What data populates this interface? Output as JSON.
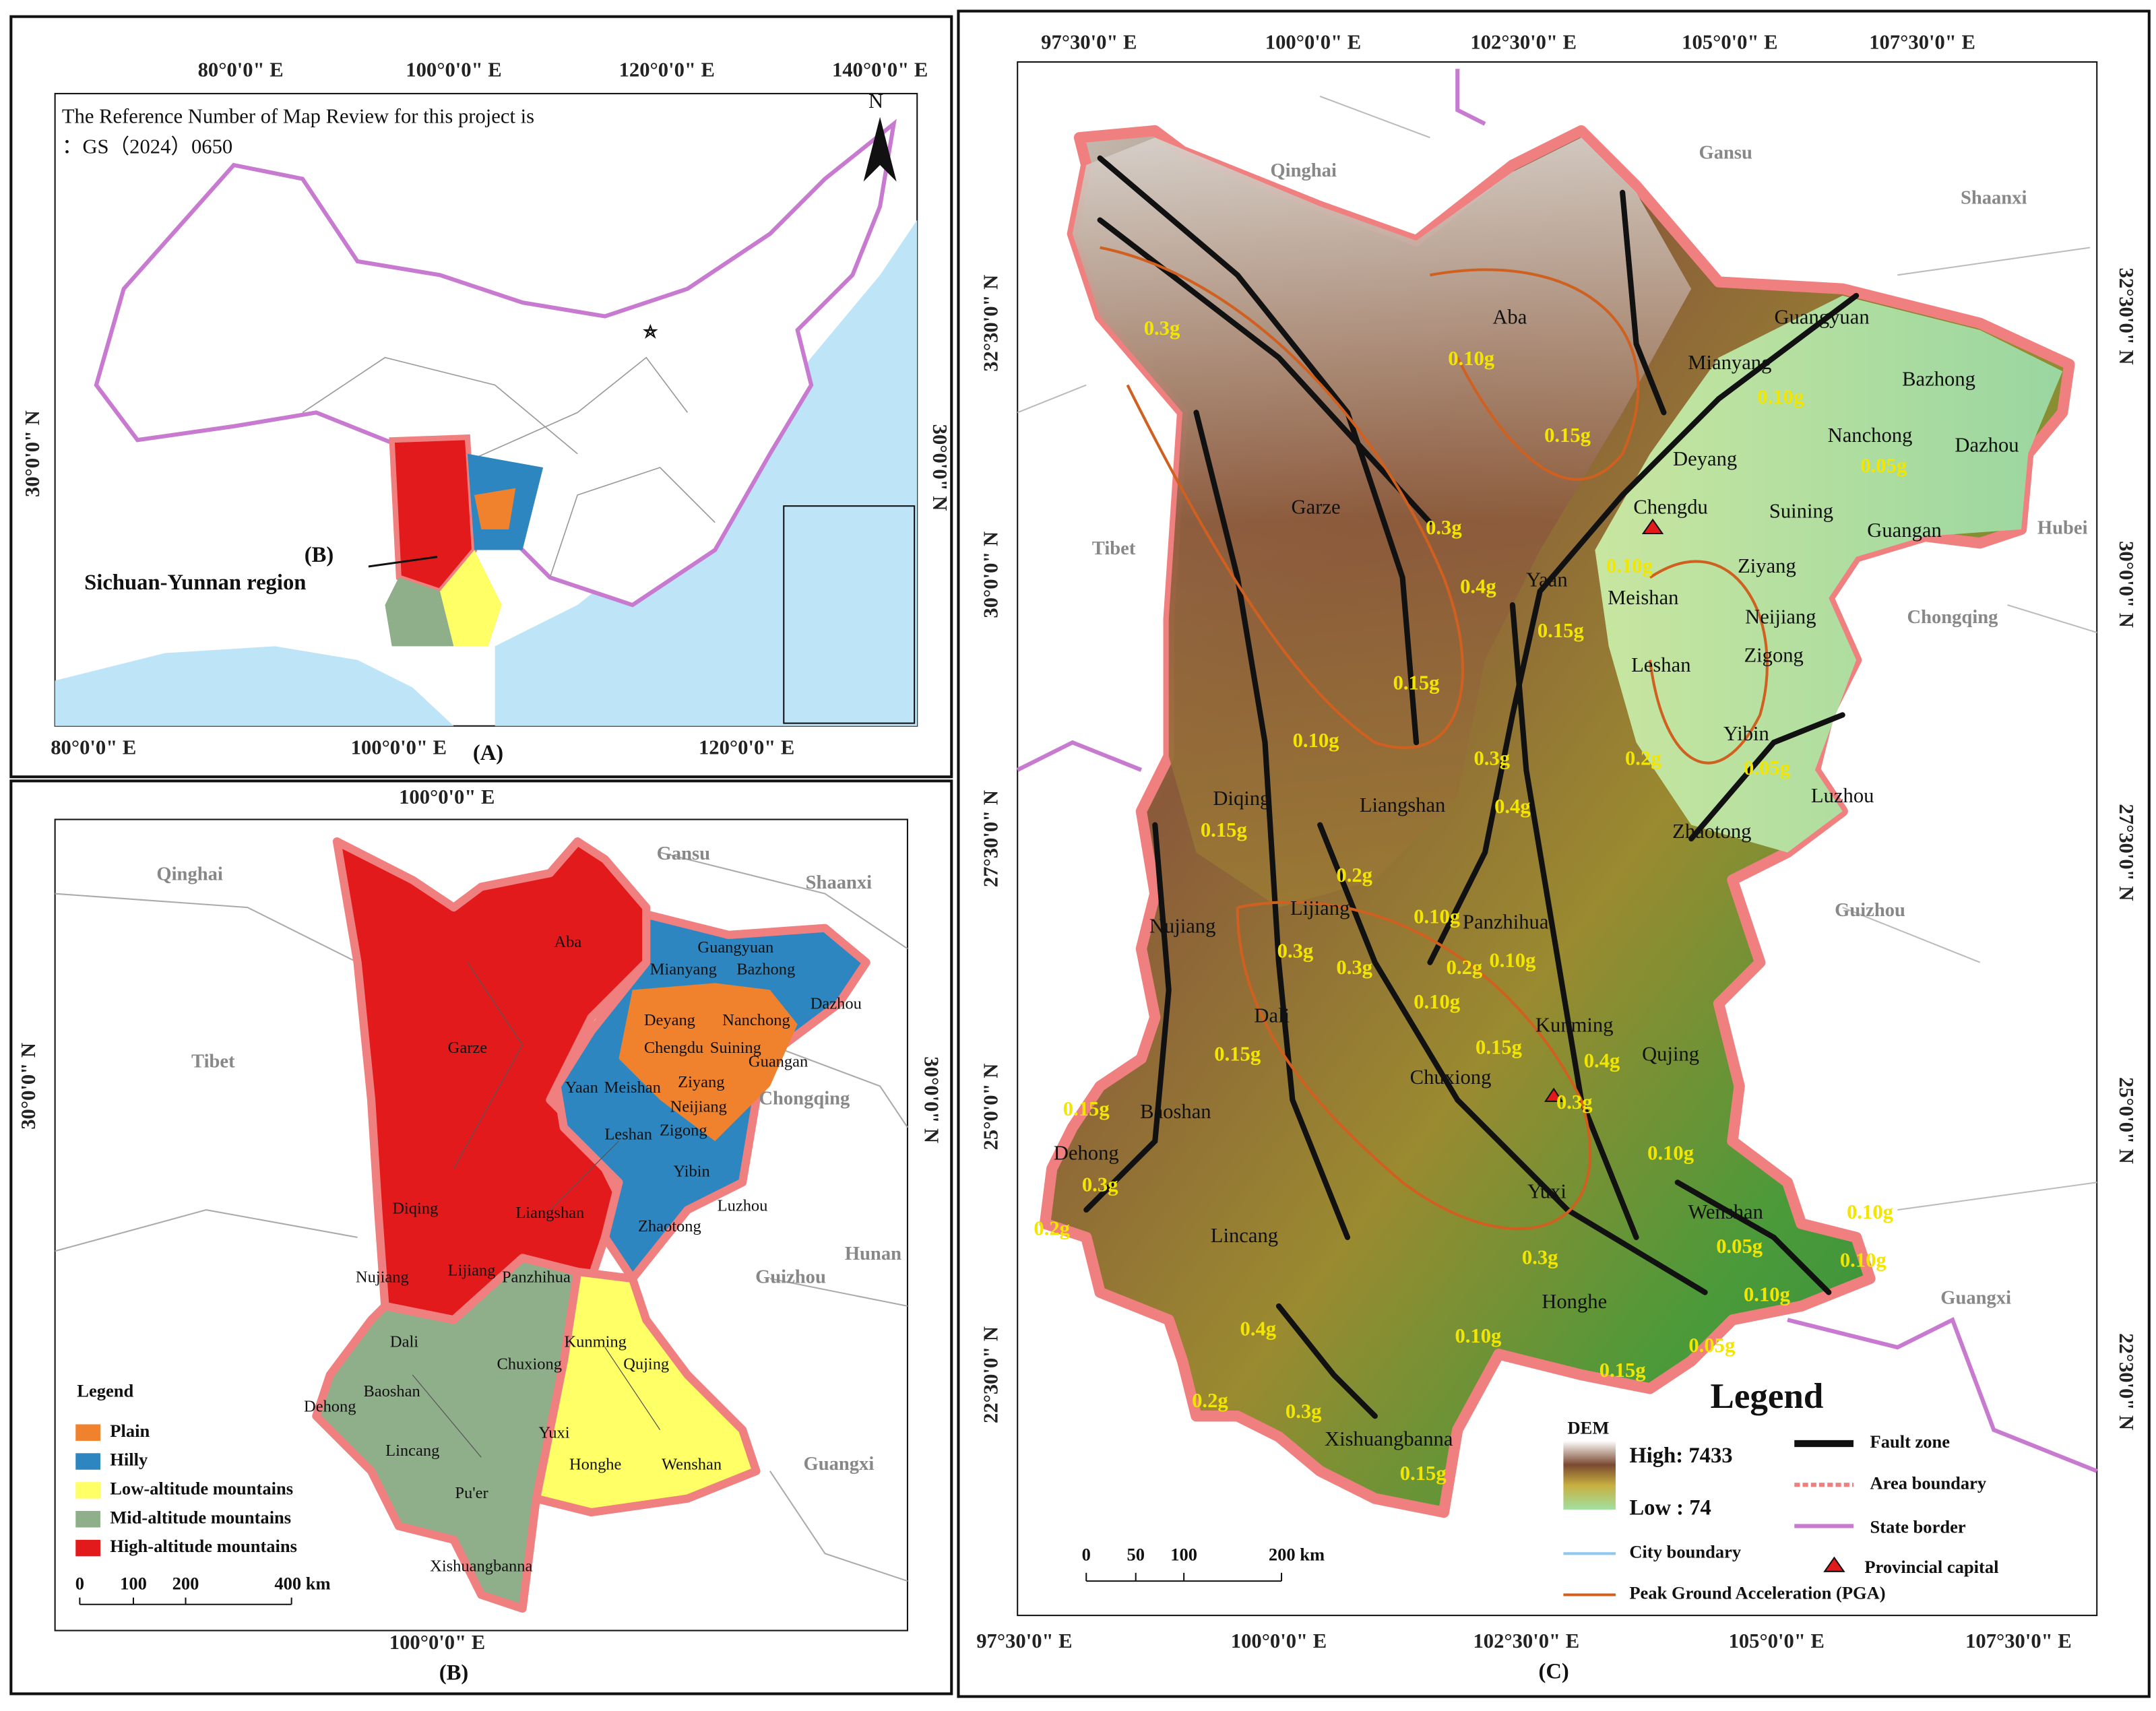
{
  "panel_a": {
    "caption": "(A)",
    "top_ticks": [
      "80°0'0\" E",
      "100°0'0\" E",
      "120°0'0\" E",
      "140°0'0\" E"
    ],
    "bottom_ticks": [
      "80°0'0\" E",
      "100°0'0\" E",
      "120°0'0\" E"
    ],
    "left_tick": "30°0'0\" N",
    "right_tick": "30°0'0\" N",
    "note": [
      "The Reference Number of Map Review for this project is",
      "：GS（2024）0650"
    ],
    "north": "N",
    "inset_label": "(B)",
    "region_label": "Sichuan-Yunnan region"
  },
  "panel_b": {
    "caption": "(B)",
    "top_tick": "100°0'0\" E",
    "bottom_tick": "100°0'0\" E",
    "left_tick": "30°0'0\" N",
    "right_tick": "30°0'0\" N",
    "neighbors": [
      "Qinghai",
      "Gansu",
      "Shaanxi",
      "Tibet",
      "Chongqing",
      "Hunan",
      "Guizhou",
      "Guangxi"
    ],
    "cities": [
      "Aba",
      "Guangyuan",
      "Mianyang",
      "Bazhong",
      "Dazhou",
      "Nanchong",
      "Deyang",
      "Garze",
      "Chengdu",
      "Suining",
      "Guangan",
      "Ziyang",
      "Yaan",
      "Meishan",
      "Neijiang",
      "Leshan",
      "Zigong",
      "Yibin",
      "Luzhou",
      "Diqing",
      "Liangshan",
      "Zhaotong",
      "Nujiang",
      "Lijiang",
      "Panzhihua",
      "Dali",
      "Kunming",
      "Qujing",
      "Chuxiong",
      "Dehong",
      "Baoshan",
      "Yuxi",
      "Lincang",
      "Wenshan",
      "Honghe",
      "Pu'er",
      "Xishuangbanna"
    ],
    "legend_title": "Legend",
    "legend": [
      "Plain",
      "Hilly",
      "Low-altitude mountains",
      "Mid-altitude mountains",
      "High-altitude mountains"
    ],
    "scale": [
      "0",
      "100",
      "200",
      "400 km"
    ]
  },
  "panel_c": {
    "caption": "(C)",
    "top_ticks": [
      "97°30'0\" E",
      "100°0'0\" E",
      "102°30'0\" E",
      "105°0'0\" E",
      "107°30'0\" E"
    ],
    "bottom_ticks": [
      "97°30'0\" E",
      "100°0'0\" E",
      "102°30'0\" E",
      "105°0'0\" E",
      "107°30'0\" E"
    ],
    "left_ticks": [
      "32°30'0\" N",
      "30°0'0\" N",
      "27°30'0\" N",
      "25°0'0\" N",
      "22°30'0\" N"
    ],
    "right_ticks": [
      "32°30'0\" N",
      "30°0'0\" N",
      "27°30'0\" N",
      "25°0'0\" N",
      "22°30'0\" N"
    ],
    "neighbors": [
      "Qinghai",
      "Gansu",
      "Shaanxi",
      "Tibet",
      "Hubei",
      "Chongqing",
      "Guizhou",
      "Guangxi"
    ],
    "cities": [
      "Aba",
      "Mianyang",
      "Guangyuan",
      "Bazhong",
      "Nanchong",
      "Dazhou",
      "Deyang",
      "Chengdu",
      "Suining",
      "Guangan",
      "Garze",
      "Ziyang",
      "Yaan",
      "Meishan",
      "Neijiang",
      "Leshan",
      "Zigong",
      "Yibin",
      "Luzhou",
      "Diqing",
      "Liangshan",
      "Zhaotong",
      "Lijiang",
      "Nujiang",
      "Panzhihua",
      "Dali",
      "Kunming",
      "Qujing",
      "Chuxiong",
      "Baoshan",
      "Dehong",
      "Lincang",
      "Yuxi",
      "Wenshan",
      "Honghe",
      "Xishuangbanna"
    ],
    "pga_labels": [
      "0.3g",
      "0.10g",
      "0.10g",
      "0.15g",
      "0.05g",
      "0.3g",
      "0.10g",
      "0.4g",
      "0.15g",
      "0.15g",
      "0.10g",
      "0.3g",
      "0.2g",
      "0.05g",
      "0.4g",
      "0.15g",
      "0.2g",
      "0.10g",
      "0.3g",
      "0.3g",
      "0.2g",
      "0.10g",
      "0.10g",
      "0.15g",
      "0.4g",
      "0.15g",
      "0.3g",
      "0.15g",
      "0.10g",
      "0.3g",
      "0.2g",
      "0.10g",
      "0.05g",
      "0.10g",
      "0.10g",
      "0.3g",
      "0.4g",
      "0.10g",
      "0.05g",
      "0.15g",
      "0.2g",
      "0.3g",
      "0.15g"
    ],
    "legend_title": "Legend",
    "dem_title": "DEM",
    "dem_high": "High: 7433",
    "dem_low": "Low : 74",
    "legend": [
      "Fault zone",
      "Area boundary",
      "State border",
      "Provincial capital",
      "City boundary",
      "Peak Ground Acceleration (PGA)"
    ],
    "scale": [
      "0",
      "50",
      "100",
      "200 km"
    ]
  }
}
